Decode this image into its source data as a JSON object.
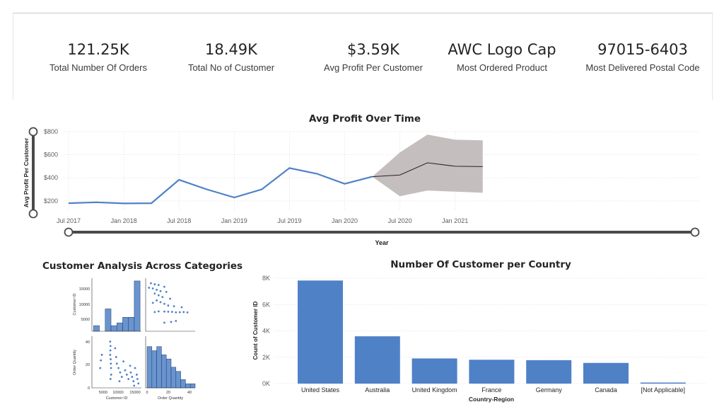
{
  "kpis": [
    {
      "value": "121.25K",
      "label": "Total Number Of Orders"
    },
    {
      "value": "18.49K",
      "label": "Total No of Customer"
    },
    {
      "value": "$3.59K",
      "label": "Avg Profit Per Customer"
    },
    {
      "value": "AWC Logo Cap",
      "label": "Most Ordered Product"
    },
    {
      "value": "97015-6403",
      "label": "Most Delivered Postal Code"
    }
  ],
  "line_chart": {
    "title": "Avg Profit Over Time",
    "ylabel": "Avg Profit Per Customer",
    "xlabel": "Year",
    "y_ticks": [
      "$800",
      "$600",
      "$400",
      "$200"
    ],
    "x_ticks": [
      "Jul 2017",
      "Jan 2018",
      "Jul 2018",
      "Jan 2019",
      "Jul 2019",
      "Jan 2020",
      "Jul 2020",
      "Jan 2021"
    ]
  },
  "pairplot": {
    "title": "Customer Analysis Across Categories",
    "y_label_top": "Customer ID",
    "y_label_bottom": "Order Quantity",
    "x_label_left": "Customer ID",
    "x_label_right": "Order Quantity",
    "y_ticks_top": [
      "15000",
      "10000",
      "5000"
    ],
    "y_ticks_bottom": [
      "40",
      "20",
      "0"
    ],
    "x_ticks_left": [
      "5000",
      "10000",
      "15000"
    ],
    "x_ticks_right": [
      "0",
      "20",
      "40"
    ]
  },
  "bar_chart": {
    "title": "Number Of Customer per Country",
    "ylabel": "Count of Customer ID",
    "xlabel": "Country-Region",
    "y_ticks": [
      "8K",
      "6K",
      "4K",
      "2K",
      "0K"
    ]
  },
  "chart_data": [
    {
      "type": "line",
      "title": "Avg Profit Over Time",
      "xlabel": "Year",
      "ylabel": "Avg Profit Per Customer",
      "ylim": [
        150,
        850
      ],
      "x": [
        "2017-07",
        "2017-10",
        "2018-01",
        "2018-04",
        "2018-07",
        "2018-10",
        "2019-01",
        "2019-04",
        "2019-07",
        "2019-10",
        "2020-01",
        "2020-04"
      ],
      "values": [
        180,
        188,
        178,
        180,
        383,
        300,
        230,
        300,
        485,
        435,
        348,
        410
      ],
      "forecast": {
        "x": [
          "2020-04",
          "2020-07",
          "2020-10",
          "2021-01",
          "2021-04"
        ],
        "values": [
          410,
          425,
          530,
          500,
          497
        ],
        "upper": [
          410,
          620,
          775,
          730,
          725
        ],
        "lower": [
          410,
          240,
          290,
          280,
          270
        ]
      }
    },
    {
      "type": "bar",
      "title": "Number Of Customer per Country",
      "xlabel": "Country-Region",
      "ylabel": "Count of Customer ID",
      "ylim": [
        0,
        8000
      ],
      "categories": [
        "United States",
        "Australia",
        "United Kingdom",
        "France",
        "Germany",
        "Canada",
        "[Not Applicable]"
      ],
      "values": [
        7820,
        3590,
        1910,
        1810,
        1780,
        1570,
        50
      ]
    },
    {
      "type": "scatter",
      "title": "Customer Analysis Across Categories",
      "hist_customer_id": {
        "bins": [
          4000,
          5750,
          7500,
          9250,
          11000,
          12750,
          14500,
          16250,
          18000
        ],
        "counts": [
          2,
          0,
          8,
          2,
          3,
          5,
          5,
          18
        ]
      },
      "hist_order_quantity": {
        "bins": [
          0,
          5,
          10,
          15,
          20,
          25,
          30,
          35,
          40,
          45,
          50
        ],
        "counts": [
          10,
          9,
          10,
          8,
          7,
          5,
          4,
          2,
          1,
          1
        ]
      },
      "points": [
        [
          6000,
          18
        ],
        [
          6500,
          30
        ],
        [
          6200,
          25
        ],
        [
          9000,
          30
        ],
        [
          9200,
          22
        ],
        [
          9000,
          42
        ],
        [
          9100,
          38
        ],
        [
          9050,
          34
        ],
        [
          9150,
          26
        ],
        [
          9250,
          18
        ],
        [
          9300,
          12
        ],
        [
          9100,
          8
        ],
        [
          10500,
          36
        ],
        [
          10800,
          28
        ],
        [
          11000,
          22
        ],
        [
          11500,
          18
        ],
        [
          12000,
          14
        ],
        [
          12500,
          10
        ],
        [
          11800,
          6
        ],
        [
          13000,
          24
        ],
        [
          13500,
          16
        ],
        [
          14000,
          12
        ],
        [
          14500,
          8
        ],
        [
          15000,
          20
        ],
        [
          15200,
          14
        ],
        [
          15600,
          10
        ],
        [
          16000,
          6
        ],
        [
          16200,
          2
        ],
        [
          16500,
          18
        ],
        [
          17000,
          12
        ],
        [
          17200,
          8
        ],
        [
          17500,
          4
        ]
      ]
    }
  ],
  "colors": {
    "primary": "#4f81c7",
    "forecast_band": "#c5bebf",
    "grid": "#e1e1e1",
    "text": "#252423"
  }
}
